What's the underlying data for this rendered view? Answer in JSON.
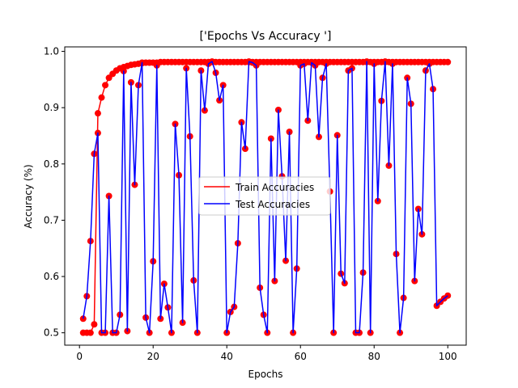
{
  "chart_data": {
    "type": "line",
    "title": "['Epochs Vs Accuracy ']",
    "xlabel": "Epochs",
    "ylabel": "Accuracy (%)",
    "xlim": [
      -4,
      105
    ],
    "ylim": [
      0.478,
      1.008
    ],
    "xticks": [
      0,
      20,
      40,
      60,
      80,
      100
    ],
    "yticks": [
      0.5,
      0.6,
      0.7,
      0.8,
      0.9,
      1.0
    ],
    "ytick_labels": [
      "0.5",
      "0.6",
      "0.7",
      "0.8",
      "0.9",
      "1.0"
    ],
    "grid": false,
    "legend": "center",
    "x": [
      1,
      2,
      3,
      4,
      5,
      6,
      7,
      8,
      9,
      10,
      11,
      12,
      13,
      14,
      15,
      16,
      17,
      18,
      19,
      20,
      21,
      22,
      23,
      24,
      25,
      26,
      27,
      28,
      29,
      30,
      31,
      32,
      33,
      34,
      35,
      36,
      37,
      38,
      39,
      40,
      41,
      42,
      43,
      44,
      45,
      46,
      47,
      48,
      49,
      50,
      51,
      52,
      53,
      54,
      55,
      56,
      57,
      58,
      59,
      60,
      61,
      62,
      63,
      64,
      65,
      66,
      67,
      68,
      69,
      70,
      71,
      72,
      73,
      74,
      75,
      76,
      77,
      78,
      79,
      80,
      81,
      82,
      83,
      84,
      85,
      86,
      87,
      88,
      89,
      90,
      91,
      92,
      93,
      94,
      95,
      96,
      97,
      98,
      99,
      100
    ],
    "series": [
      {
        "name": "Train Accuracies",
        "color": "#ff0000",
        "marker_color": "#ff0000",
        "values": [
          0.5,
          0.5,
          0.5,
          0.515,
          0.89,
          0.918,
          0.94,
          0.953,
          0.96,
          0.966,
          0.97,
          0.972,
          0.974,
          0.976,
          0.977,
          0.978,
          0.979,
          0.98,
          0.98,
          0.98,
          0.98,
          0.981,
          0.981,
          0.981,
          0.981,
          0.981,
          0.981,
          0.981,
          0.981,
          0.981,
          0.981,
          0.981,
          0.981,
          0.981,
          0.981,
          0.981,
          0.981,
          0.981,
          0.981,
          0.981,
          0.981,
          0.981,
          0.981,
          0.981,
          0.981,
          0.981,
          0.981,
          0.981,
          0.981,
          0.981,
          0.981,
          0.981,
          0.981,
          0.981,
          0.981,
          0.981,
          0.981,
          0.981,
          0.981,
          0.981,
          0.981,
          0.981,
          0.981,
          0.981,
          0.981,
          0.981,
          0.981,
          0.981,
          0.981,
          0.981,
          0.981,
          0.981,
          0.981,
          0.981,
          0.981,
          0.981,
          0.981,
          0.981,
          0.981,
          0.981,
          0.981,
          0.981,
          0.981,
          0.981,
          0.981,
          0.981,
          0.981,
          0.981,
          0.981,
          0.981,
          0.981,
          0.981,
          0.981,
          0.981,
          0.981,
          0.981,
          0.981,
          0.981,
          0.981,
          0.981
        ]
      },
      {
        "name": "Test Accuracies",
        "color": "#0000ff",
        "marker_color": "#ff0000",
        "values": [
          0.525,
          0.565,
          0.663,
          0.818,
          0.855,
          0.5,
          0.5,
          0.743,
          0.5,
          0.5,
          0.532,
          0.965,
          0.503,
          0.945,
          0.763,
          0.94,
          0.98,
          0.527,
          0.5,
          0.627,
          0.975,
          0.525,
          0.587,
          0.545,
          0.5,
          0.871,
          0.78,
          0.518,
          0.97,
          0.849,
          0.593,
          0.5,
          0.966,
          0.895,
          0.978,
          0.982,
          0.962,
          0.913,
          0.94,
          0.5,
          0.537,
          0.546,
          0.659,
          0.874,
          0.827,
          0.982,
          0.98,
          0.975,
          0.58,
          0.532,
          0.5,
          0.845,
          0.592,
          0.896,
          0.778,
          0.628,
          0.857,
          0.5,
          0.614,
          0.975,
          0.978,
          0.877,
          0.98,
          0.975,
          0.848,
          0.953,
          0.978,
          0.751,
          0.5,
          0.851,
          0.605,
          0.588,
          0.966,
          0.97,
          0.5,
          0.5,
          0.607,
          0.982,
          0.5,
          0.978,
          0.734,
          0.912,
          0.982,
          0.797,
          0.978,
          0.64,
          0.5,
          0.562,
          0.953,
          0.907,
          0.592,
          0.72,
          0.675,
          0.966,
          0.978,
          0.933,
          0.548,
          0.555,
          0.561,
          0.566
        ]
      }
    ]
  }
}
